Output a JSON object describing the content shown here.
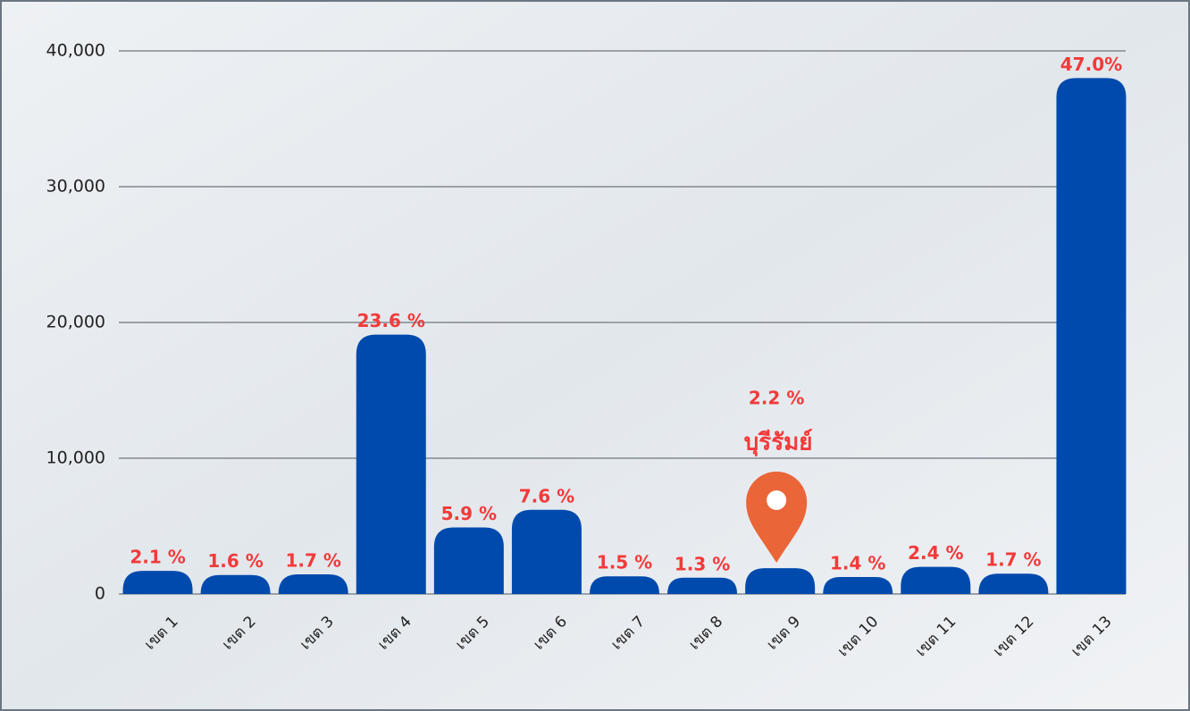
{
  "chart_data": {
    "type": "bar",
    "categories": [
      "เขต 1",
      "เขต 2",
      "เขต 3",
      "เขต 4",
      "เขต 5",
      "เขต 6",
      "เขต 7",
      "เขต 8",
      "เขต 9",
      "เขต 10",
      "เขต 11",
      "เขต 12",
      "เขต 13"
    ],
    "values": [
      1700,
      1400,
      1450,
      19100,
      4900,
      6200,
      1300,
      1200,
      1900,
      1250,
      2000,
      1500,
      38000
    ],
    "percent_labels": [
      "2.1 %",
      "1.6 %",
      "1.7 %",
      "23.6 %",
      "5.9 %",
      "7.6 %",
      "1.5 %",
      "1.3 %",
      "2.2 %",
      "1.4 %",
      "2.4 %",
      "1.7 %",
      "47.0%"
    ],
    "annotation": "บุรีรัมย์",
    "color": "#004aad",
    "ylim": [
      0,
      40000
    ],
    "yticks": [
      0,
      {
        "value": 10000,
        "label": "10,000"
      },
      {
        "value": 20000,
        "label": "20,000"
      },
      {
        "value": 30000,
        "label": "30,000"
      },
      {
        "value": 40000,
        "label": "40,000"
      }
    ],
    "grid": true
  }
}
